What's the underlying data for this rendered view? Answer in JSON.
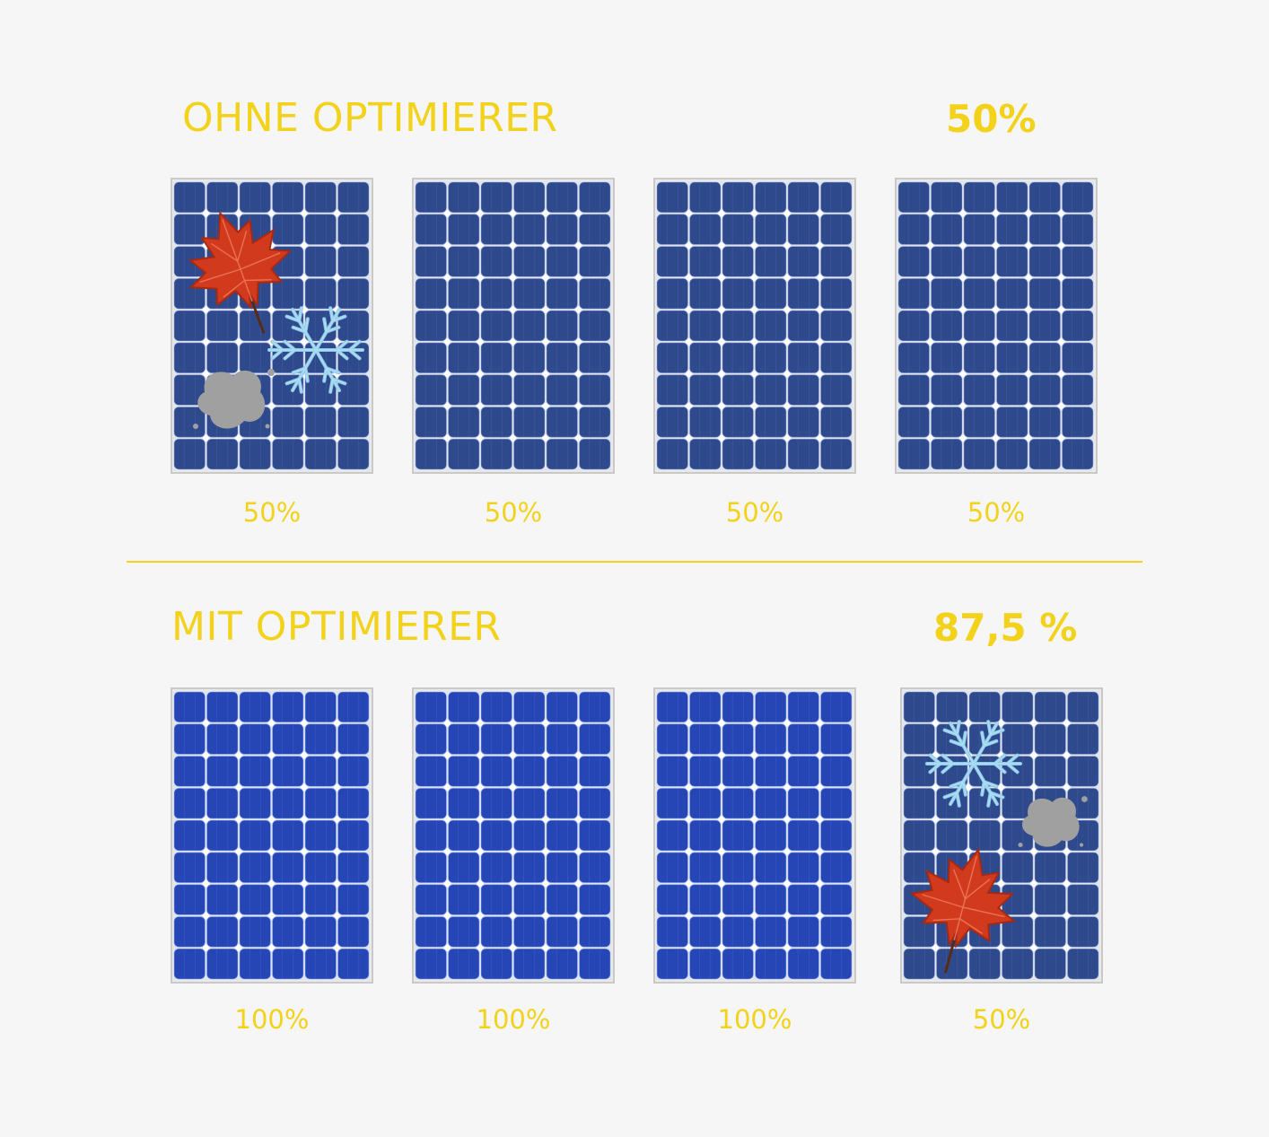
{
  "sections": [
    {
      "heading": "OHNE OPTIMIERER",
      "total": "50%",
      "panels": [
        {
          "label": "50%",
          "state": "degraded",
          "obstructed": true
        },
        {
          "label": "50%",
          "state": "degraded",
          "obstructed": false
        },
        {
          "label": "50%",
          "state": "degraded",
          "obstructed": false
        },
        {
          "label": "50%",
          "state": "degraded",
          "obstructed": false
        }
      ]
    },
    {
      "heading": "MIT OPTIMIERER",
      "total": "87,5 %",
      "panels": [
        {
          "label": "100%",
          "state": "full",
          "obstructed": false
        },
        {
          "label": "100%",
          "state": "full",
          "obstructed": false
        },
        {
          "label": "100%",
          "state": "full",
          "obstructed": false
        },
        {
          "label": "50%",
          "state": "degraded",
          "obstructed": true
        }
      ]
    }
  ],
  "colors": {
    "accent": "#f2d21b",
    "background": "#f6f6f6",
    "panel_degraded": "#2e4a8c",
    "panel_full": "#2546b4",
    "frame": "#c9c9c9",
    "leaf": "#d23a1d",
    "snowflake": "#a9dcf2",
    "stain": "#a0a0a0"
  },
  "icons": [
    "maple-leaf-icon",
    "snowflake-icon",
    "dirt-stain-icon"
  ]
}
